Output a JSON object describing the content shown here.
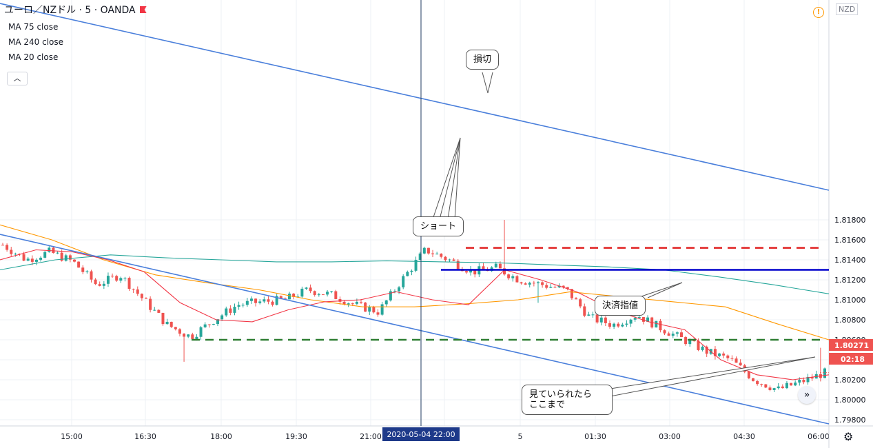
{
  "header": {
    "symbol_title": "ユーロ／NZドル · 5 · OANDA",
    "ma_labels": [
      "MA 75 close",
      "MA 240 close",
      "MA 20 close"
    ],
    "currency": "NZD"
  },
  "price_badges": {
    "last_price": "1.80271",
    "countdown": "02:18"
  },
  "crosshair_label": "2020-05-04   22:00",
  "callouts": {
    "stop_loss": "損切",
    "short": "ショート",
    "take_profit": "決済指値",
    "extended_line1": "見ていられたら",
    "extended_line2": "ここまで"
  },
  "colors": {
    "up": "#26a69a",
    "down": "#ef5350",
    "ma75": "#ff9800",
    "ma240": "#26a69a",
    "ma20": "#f23645",
    "channel": "#4a7fdb",
    "entry_line": "#0000cc",
    "stop_line": "#e02020",
    "target_line": "#2e7d32"
  },
  "chart_data": {
    "type": "line",
    "title": "ユーロ／NZドル · 5 · OANDA",
    "ylim": [
      1.7987,
      1.82
    ],
    "y_ticks": [
      "1.79800",
      "1.80000",
      "1.80200",
      "1.80400",
      "1.80600",
      "1.80800",
      "1.81000",
      "1.81200",
      "1.81400",
      "1.81600",
      "1.81800"
    ],
    "x_ticks": [
      "15:00",
      "16:30",
      "18:00",
      "19:30",
      "21:00",
      "22:00",
      "5",
      "01:30",
      "03:00",
      "04:30",
      "06:00"
    ],
    "levels": {
      "stop_loss": 1.8152,
      "entry": 1.813,
      "take_profit": 1.806
    },
    "close_series": [
      {
        "t": "14:00",
        "v": 1.8155
      },
      {
        "t": "14:30",
        "v": 1.814
      },
      {
        "t": "15:00",
        "v": 1.8148
      },
      {
        "t": "15:30",
        "v": 1.8138
      },
      {
        "t": "16:00",
        "v": 1.8115
      },
      {
        "t": "16:30",
        "v": 1.8125
      },
      {
        "t": "17:00",
        "v": 1.81
      },
      {
        "t": "17:15",
        "v": 1.8075
      },
      {
        "t": "17:30",
        "v": 1.8063
      },
      {
        "t": "18:00",
        "v": 1.808
      },
      {
        "t": "18:30",
        "v": 1.8095
      },
      {
        "t": "19:00",
        "v": 1.8098
      },
      {
        "t": "19:30",
        "v": 1.81
      },
      {
        "t": "20:00",
        "v": 1.811
      },
      {
        "t": "20:30",
        "v": 1.8105
      },
      {
        "t": "21:00",
        "v": 1.8095
      },
      {
        "t": "21:15",
        "v": 1.8088
      },
      {
        "t": "21:30",
        "v": 1.812
      },
      {
        "t": "22:00",
        "v": 1.815
      },
      {
        "t": "22:30",
        "v": 1.814
      },
      {
        "t": "23:00",
        "v": 1.8128
      },
      {
        "t": "23:30",
        "v": 1.8132
      },
      {
        "t": "00:00",
        "v": 1.812
      },
      {
        "t": "00:30",
        "v": 1.8115
      },
      {
        "t": "01:00",
        "v": 1.811
      },
      {
        "t": "01:30",
        "v": 1.8082
      },
      {
        "t": "02:00",
        "v": 1.8075
      },
      {
        "t": "02:30",
        "v": 1.8085
      },
      {
        "t": "03:00",
        "v": 1.8072
      },
      {
        "t": "03:15",
        "v": 1.806
      },
      {
        "t": "03:30",
        "v": 1.8048
      },
      {
        "t": "04:00",
        "v": 1.804
      },
      {
        "t": "04:30",
        "v": 1.802
      },
      {
        "t": "05:00",
        "v": 1.801
      },
      {
        "t": "05:30",
        "v": 1.8018
      },
      {
        "t": "06:00",
        "v": 1.8027
      }
    ],
    "series": [
      {
        "name": "MA 75 close",
        "values": [
          1.8175,
          1.816,
          1.814,
          1.8125,
          1.8117,
          1.811,
          1.81,
          1.8093,
          1.8093,
          1.8096,
          1.81,
          1.8108,
          1.8103,
          1.8098,
          1.8093,
          1.8076,
          1.806
        ]
      },
      {
        "name": "MA 240 close",
        "values": [
          1.813,
          1.814,
          1.8145,
          1.8142,
          1.814,
          1.8138,
          1.8138,
          1.8139,
          1.8138,
          1.8137,
          1.8135,
          1.8133,
          1.813,
          1.8123,
          1.8115,
          1.8106
        ]
      },
      {
        "name": "MA 20 close",
        "values": [
          1.814,
          1.815,
          1.8148,
          1.814,
          1.8128,
          1.8097,
          1.808,
          1.8078,
          1.809,
          1.8098,
          1.81,
          1.8108,
          1.81,
          1.8095,
          1.813,
          1.812,
          1.8108,
          1.809,
          1.8078,
          1.807,
          1.804,
          1.8025,
          1.802,
          1.8025
        ]
      }
    ]
  }
}
